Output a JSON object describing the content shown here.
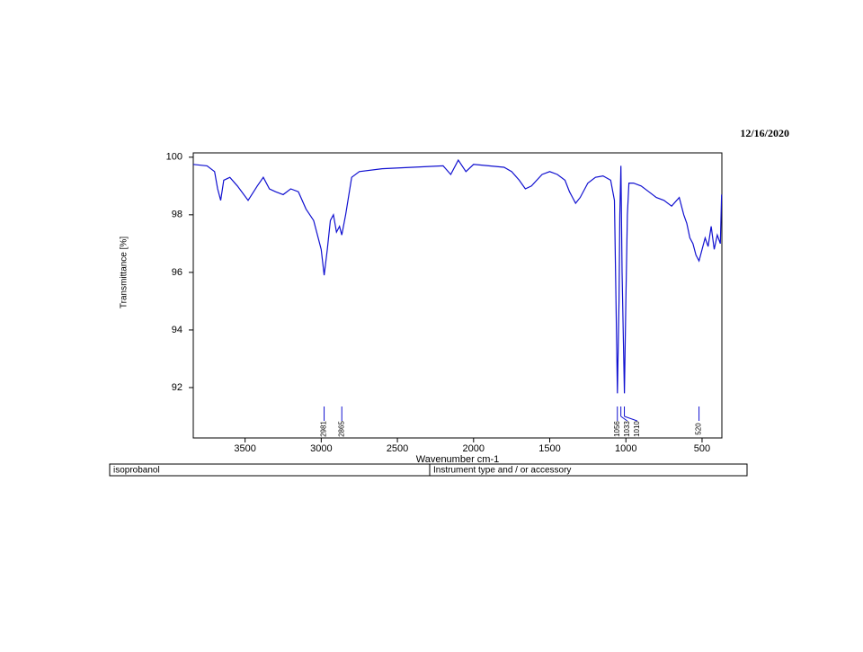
{
  "date": "12/16/2020",
  "chart_data": {
    "type": "line",
    "xlabel": "Wavenumber cm-1",
    "ylabel": "Transmittance [%]",
    "xlim": [
      3840,
      370
    ],
    "ylim": [
      90.25,
      100.15
    ],
    "xticks": [
      3500,
      3000,
      2500,
      2000,
      1500,
      1000,
      500
    ],
    "yticks": [
      92,
      94,
      96,
      98,
      100
    ],
    "peaks": [
      2981,
      2865,
      1056,
      1033,
      1010,
      520
    ],
    "series": [
      {
        "color": "#1010d0",
        "x": [
          3840,
          3750,
          3700,
          3680,
          3660,
          3640,
          3600,
          3550,
          3480,
          3420,
          3380,
          3340,
          3300,
          3250,
          3200,
          3150,
          3100,
          3050,
          3000,
          2981,
          2960,
          2940,
          2920,
          2900,
          2880,
          2865,
          2840,
          2800,
          2750,
          2600,
          2400,
          2200,
          2150,
          2100,
          2050,
          2000,
          1900,
          1800,
          1750,
          1700,
          1660,
          1620,
          1550,
          1500,
          1450,
          1400,
          1370,
          1330,
          1300,
          1250,
          1200,
          1150,
          1100,
          1075,
          1056,
          1045,
          1040,
          1033,
          1025,
          1010,
          1000,
          990,
          980,
          950,
          900,
          850,
          800,
          750,
          700,
          650,
          620,
          600,
          580,
          560,
          540,
          520,
          500,
          480,
          460,
          440,
          420,
          400,
          380,
          372
        ],
        "values": [
          99.75,
          99.7,
          99.5,
          98.9,
          98.5,
          99.2,
          99.3,
          99.0,
          98.5,
          99.0,
          99.3,
          98.9,
          98.8,
          98.7,
          98.9,
          98.8,
          98.2,
          97.8,
          96.8,
          95.9,
          96.8,
          97.8,
          98.0,
          97.4,
          97.6,
          97.3,
          98.0,
          99.3,
          99.5,
          99.6,
          99.65,
          99.7,
          99.4,
          99.9,
          99.5,
          99.75,
          99.7,
          99.65,
          99.5,
          99.2,
          98.9,
          99.0,
          99.4,
          99.5,
          99.4,
          99.2,
          98.8,
          98.4,
          98.6,
          99.1,
          99.3,
          99.35,
          99.2,
          98.5,
          91.8,
          95.0,
          98.0,
          99.7,
          96.0,
          91.8,
          95.0,
          98.0,
          99.1,
          99.1,
          99.0,
          98.8,
          98.6,
          98.5,
          98.3,
          98.6,
          98.0,
          97.7,
          97.2,
          97.0,
          96.6,
          96.4,
          96.8,
          97.2,
          96.9,
          97.6,
          96.8,
          97.3,
          97.0,
          98.7
        ]
      }
    ]
  },
  "table": {
    "sample": "isoprobanol",
    "instrument": "Instrument type and / or accessory"
  }
}
